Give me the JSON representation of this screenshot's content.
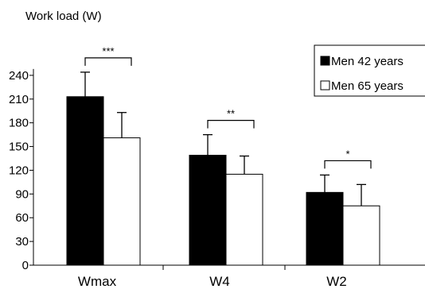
{
  "chart_data": {
    "type": "bar",
    "ylabel": "Work load (W)",
    "categories": [
      "Wmax",
      "W4",
      "W2"
    ],
    "series": [
      {
        "name": "Men 42 years",
        "color": "#000000",
        "values": [
          213,
          139,
          92
        ],
        "errors": [
          31,
          26,
          22
        ]
      },
      {
        "name": "Men 65 years",
        "color": "#ffffff",
        "values": [
          161,
          115,
          75
        ],
        "errors": [
          32,
          23,
          27
        ]
      }
    ],
    "significance": [
      "***",
      "**",
      "*"
    ],
    "yticks": [
      0,
      30,
      60,
      90,
      120,
      150,
      180,
      210,
      240
    ],
    "ylim": [
      0,
      270
    ],
    "legend": "top-right",
    "grid": false
  }
}
